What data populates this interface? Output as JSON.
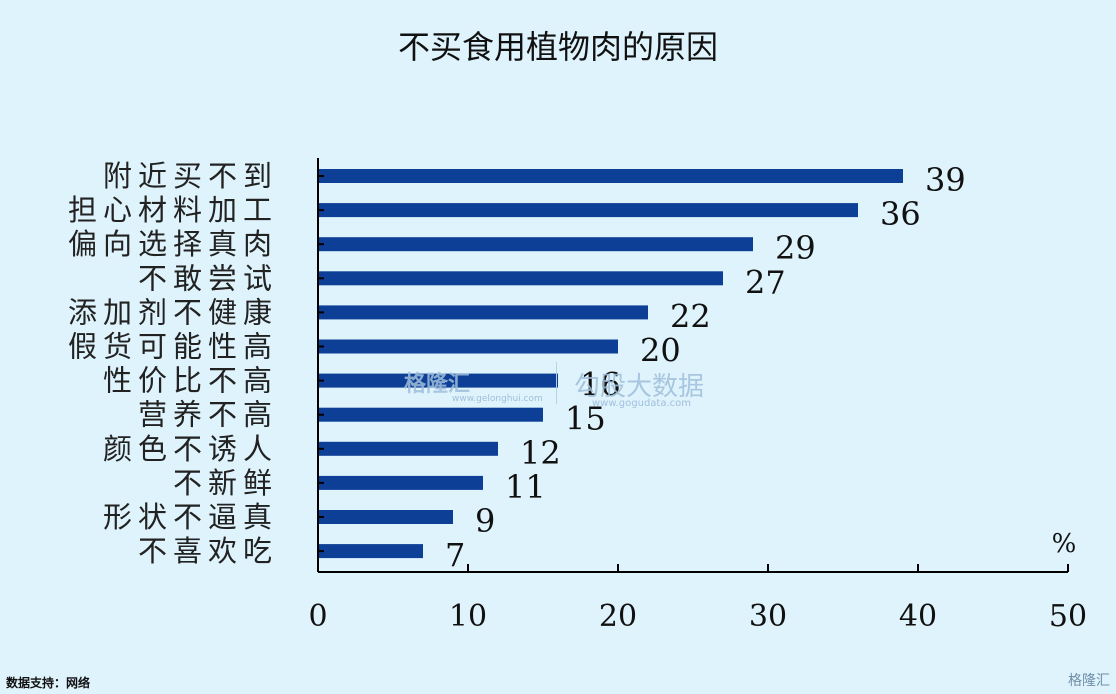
{
  "chart_data": {
    "type": "bar",
    "orientation": "horizontal",
    "title": "不买食用植物肉的原因",
    "unit_label": "%",
    "categories": [
      "附近买不到",
      "担心材料加工",
      "偏向选择真肉",
      "不敢尝试",
      "添加剂不健康",
      "假货可能性高",
      "性价比不高",
      "营养不高",
      "颜色不诱人",
      "不新鲜",
      "形状不逼真",
      "不喜欢吃"
    ],
    "values": [
      39,
      36,
      29,
      27,
      22,
      20,
      16,
      15,
      12,
      11,
      9,
      7
    ],
    "xlim": [
      0,
      50
    ],
    "xticks": [
      0,
      10,
      20,
      30,
      40,
      50
    ],
    "bar_color": "#0e3f96",
    "grid": false
  },
  "footer": {
    "source": "数据支持：网络"
  },
  "watermarks": {
    "left": "格隆汇",
    "left_sub": "www.gelonghui.com",
    "right": "勾股大数据",
    "right_sub": "www.gogudata.com",
    "corner": "格隆汇"
  }
}
